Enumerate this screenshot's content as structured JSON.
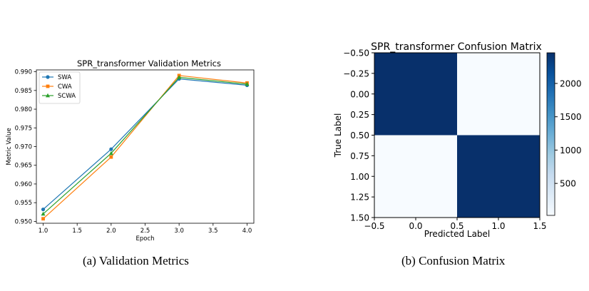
{
  "figure": {
    "captions": [
      {
        "label": "(a)",
        "text": "Validation Metrics"
      },
      {
        "label": "(b)",
        "text": "Confusion Matrix"
      }
    ]
  },
  "chart_data": [
    {
      "type": "line",
      "title": "SPR_transformer Validation Metrics",
      "xlabel": "Epoch",
      "ylabel": "Metric Value",
      "x": [
        1,
        2,
        3,
        4
      ],
      "xlim": [
        0.9,
        4.1
      ],
      "ylim": [
        0.9495,
        0.9905
      ],
      "xticks": [
        "1.0",
        "1.5",
        "2.0",
        "2.5",
        "3.0",
        "3.5",
        "4.0"
      ],
      "yticks": [
        "0.950",
        "0.955",
        "0.960",
        "0.965",
        "0.970",
        "0.975",
        "0.980",
        "0.985",
        "0.990"
      ],
      "grid": false,
      "legend_position": "upper-left",
      "series": [
        {
          "name": "SWA",
          "marker": "circle",
          "color": "#1f77b4",
          "values": [
            0.9532,
            0.9693,
            0.9881,
            0.9864
          ]
        },
        {
          "name": "CWA",
          "marker": "square",
          "color": "#ff7f0e",
          "values": [
            0.9507,
            0.9672,
            0.989,
            0.987
          ]
        },
        {
          "name": "SCWA",
          "marker": "triangle",
          "color": "#2ca02c",
          "values": [
            0.952,
            0.9682,
            0.9885,
            0.9867
          ]
        }
      ]
    },
    {
      "type": "heatmap",
      "title": "SPR_transformer Confusion Matrix",
      "xlabel": "Predicted Label",
      "ylabel": "True Label",
      "xlim": [
        -0.5,
        1.5
      ],
      "ylim": [
        -0.5,
        1.5
      ],
      "xticks": [
        "−0.5",
        "0.0",
        "0.5",
        "1.0",
        "1.5"
      ],
      "yticks": [
        "−0.50",
        "−0.25",
        "0.00",
        "0.25",
        "0.50",
        "0.75",
        "1.00",
        "1.25",
        "1.50"
      ],
      "matrix": [
        [
          2460,
          20
        ],
        [
          20,
          2460
        ]
      ],
      "colormap": "Blues",
      "colorbar_range": [
        20,
        2460
      ],
      "colorbar_ticks": [
        "500",
        "1000",
        "1500",
        "2000"
      ]
    }
  ]
}
